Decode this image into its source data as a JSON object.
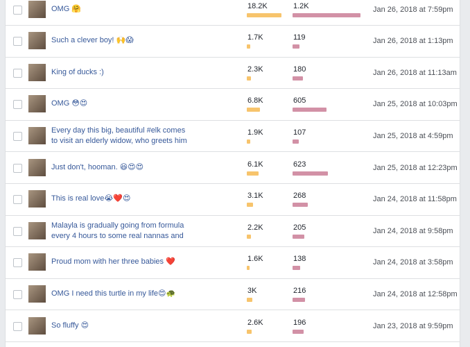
{
  "table": {
    "rows": [
      {
        "title": [
          "OMG 🤗"
        ],
        "reach": 18200,
        "reach_label": "18.2K",
        "engagement": 1200,
        "engagement_label": "1.2K",
        "date": "Jan 26, 2018 at 7:59pm"
      },
      {
        "title": [
          "Such a clever boy! 🙌😱"
        ],
        "reach": 1700,
        "reach_label": "1.7K",
        "engagement": 119,
        "engagement_label": "119",
        "date": "Jan 26, 2018 at 1:13pm"
      },
      {
        "title": [
          "King of ducks :)"
        ],
        "reach": 2300,
        "reach_label": "2.3K",
        "engagement": 180,
        "engagement_label": "180",
        "date": "Jan 26, 2018 at 11:13am"
      },
      {
        "title": [
          "OMG 😳😍"
        ],
        "reach": 6800,
        "reach_label": "6.8K",
        "engagement": 605,
        "engagement_label": "605",
        "date": "Jan 25, 2018 at 10:03pm"
      },
      {
        "title": [
          "Every day this big, beautiful #elk comes",
          "to visit an elderly widow, who greets him"
        ],
        "reach": 1900,
        "reach_label": "1.9K",
        "engagement": 107,
        "engagement_label": "107",
        "date": "Jan 25, 2018 at 4:59pm"
      },
      {
        "title": [
          "Just don't, hooman. 😆😍😍"
        ],
        "reach": 6100,
        "reach_label": "6.1K",
        "engagement": 623,
        "engagement_label": "623",
        "date": "Jan 25, 2018 at 12:23pm"
      },
      {
        "title": [
          "This is real love😭❤️😍"
        ],
        "reach": 3100,
        "reach_label": "3.1K",
        "engagement": 268,
        "engagement_label": "268",
        "date": "Jan 24, 2018 at 11:58pm"
      },
      {
        "title": [
          "Malayla is gradually going from formula",
          "every 4 hours to some real nannas and"
        ],
        "reach": 2200,
        "reach_label": "2.2K",
        "engagement": 205,
        "engagement_label": "205",
        "date": "Jan 24, 2018 at 9:58pm"
      },
      {
        "title": [
          "Proud mom with her three babies ❤️"
        ],
        "reach": 1600,
        "reach_label": "1.6K",
        "engagement": 138,
        "engagement_label": "138",
        "date": "Jan 24, 2018 at 3:58pm"
      },
      {
        "title": [
          "OMG I need this turtle in my life😍🐢"
        ],
        "reach": 3000,
        "reach_label": "3K",
        "engagement": 216,
        "engagement_label": "216",
        "date": "Jan 24, 2018 at 12:58pm"
      },
      {
        "title": [
          "So fluffy 😍"
        ],
        "reach": 2600,
        "reach_label": "2.6K",
        "engagement": 196,
        "engagement_label": "196",
        "date": "Jan 23, 2018 at 9:59pm"
      }
    ]
  }
}
